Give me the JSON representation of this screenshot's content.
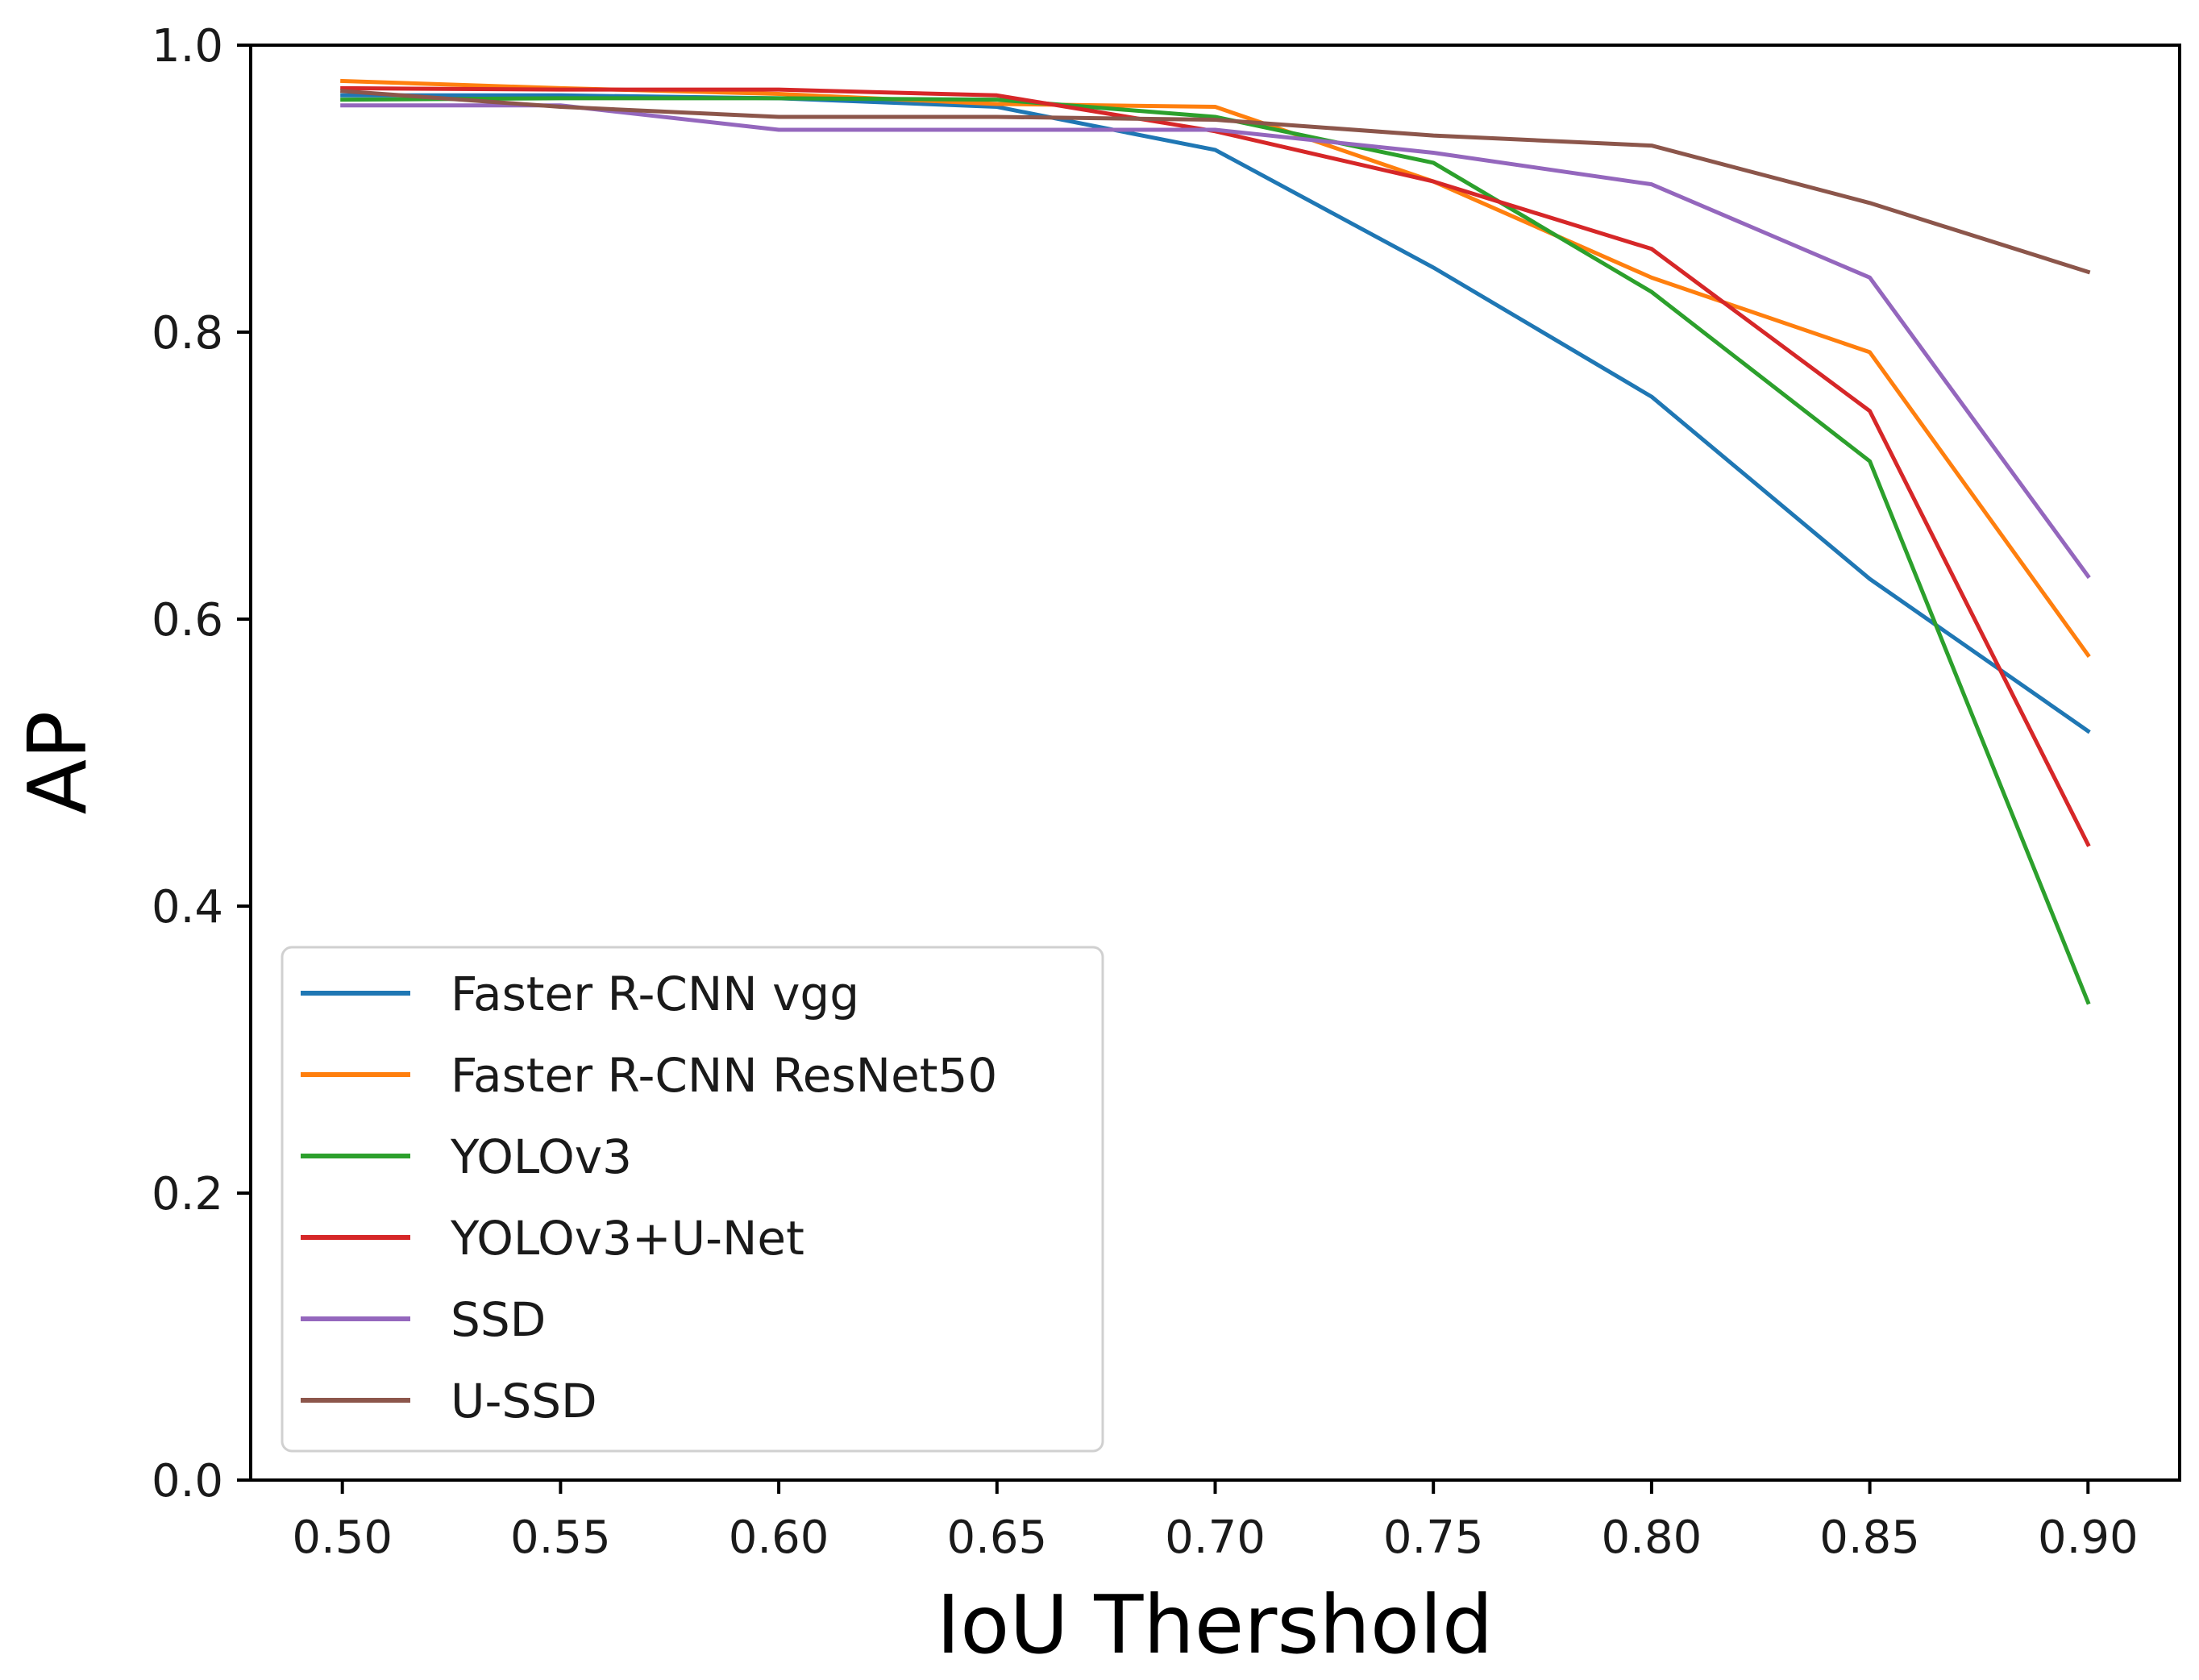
{
  "chart_data": {
    "type": "line",
    "title": "",
    "xlabel": "IoU Thershold",
    "ylabel": "AP",
    "xlim": [
      0.479,
      0.921
    ],
    "ylim": [
      0.0,
      1.0
    ],
    "xticks": [
      "0.50",
      "0.55",
      "0.60",
      "0.65",
      "0.70",
      "0.75",
      "0.80",
      "0.85",
      "0.90"
    ],
    "yticks": [
      "0.0",
      "0.2",
      "0.4",
      "0.6",
      "0.8",
      "1.0"
    ],
    "grid": false,
    "legend_position": "lower-left",
    "x": [
      0.5,
      0.55,
      0.6,
      0.65,
      0.7,
      0.75,
      0.8,
      0.85,
      0.9
    ],
    "series": [
      {
        "name": "Faster R-CNN vgg",
        "color": "#1f77b4",
        "values": [
          0.965,
          0.965,
          0.963,
          0.957,
          0.927,
          0.845,
          0.755,
          0.628,
          0.522
        ]
      },
      {
        "name": "Faster R-CNN ResNet50",
        "color": "#ff7f0e",
        "values": [
          0.975,
          0.97,
          0.966,
          0.959,
          0.957,
          0.905,
          0.838,
          0.786,
          0.575
        ]
      },
      {
        "name": "YOLOv3",
        "color": "#2ca02c",
        "values": [
          0.962,
          0.963,
          0.963,
          0.962,
          0.95,
          0.918,
          0.828,
          0.71,
          0.333
        ]
      },
      {
        "name": "YOLOv3+U-Net",
        "color": "#d62728",
        "values": [
          0.97,
          0.969,
          0.969,
          0.965,
          0.94,
          0.905,
          0.858,
          0.745,
          0.443
        ]
      },
      {
        "name": "SSD",
        "color": "#9467bd",
        "values": [
          0.958,
          0.958,
          0.941,
          0.941,
          0.941,
          0.925,
          0.903,
          0.838,
          0.63
        ]
      },
      {
        "name": "U-SSD",
        "color": "#8c564b",
        "values": [
          0.968,
          0.957,
          0.95,
          0.95,
          0.948,
          0.937,
          0.93,
          0.89,
          0.842
        ]
      }
    ]
  }
}
